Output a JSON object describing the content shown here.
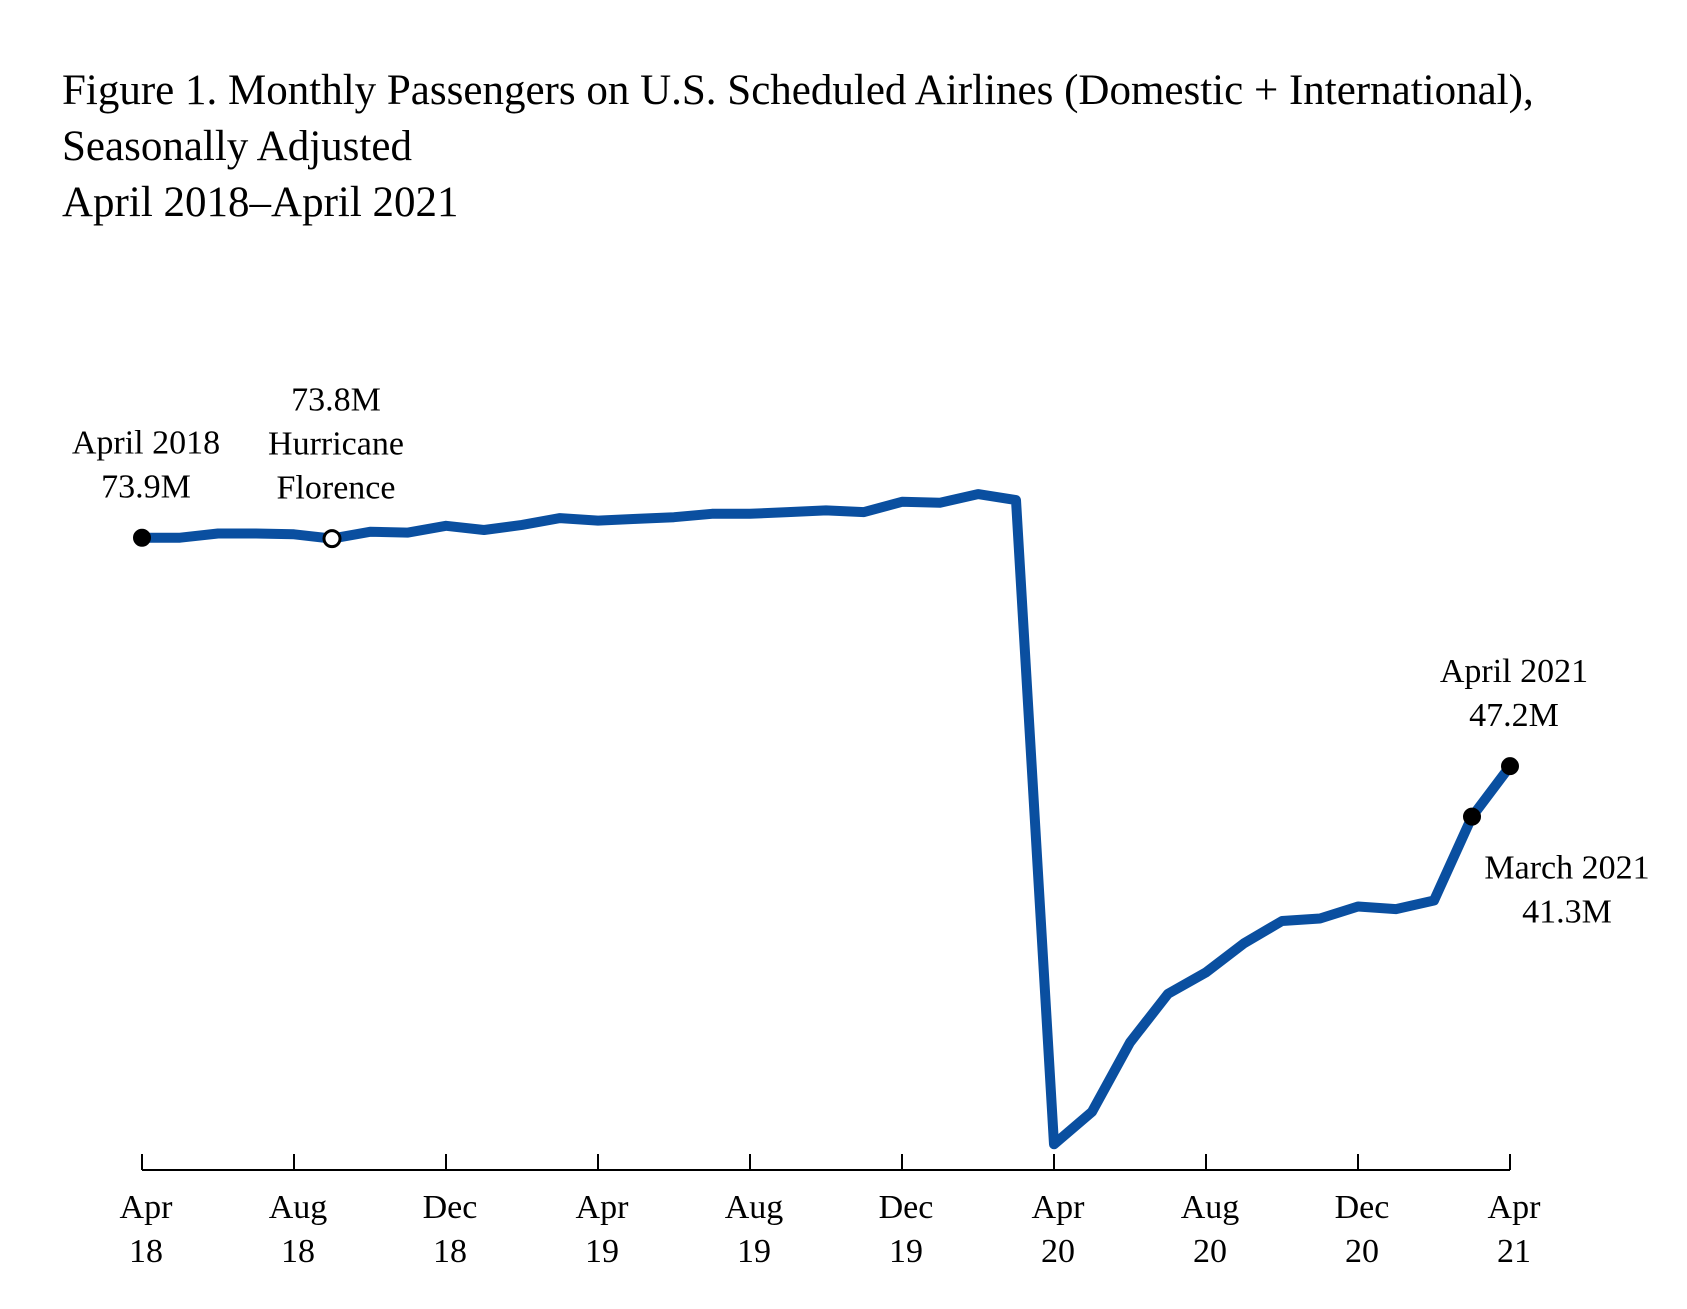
{
  "chart_data": {
    "type": "line",
    "title_lines": [
      "Figure 1. Monthly Passengers on U.S. Scheduled Airlines (Domestic + International),",
      "Seasonally Adjusted",
      "April 2018–April 2021"
    ],
    "xlabel": "",
    "ylabel": "",
    "grid": false,
    "legend": "none",
    "x_ticks": [
      {
        "month": "2018-04",
        "line1": "Apr",
        "line2": "18"
      },
      {
        "month": "2018-08",
        "line1": "Aug",
        "line2": "18"
      },
      {
        "month": "2018-12",
        "line1": "Dec",
        "line2": "18"
      },
      {
        "month": "2019-04",
        "line1": "Apr",
        "line2": "19"
      },
      {
        "month": "2019-08",
        "line1": "Aug",
        "line2": "19"
      },
      {
        "month": "2019-12",
        "line1": "Dec",
        "line2": "19"
      },
      {
        "month": "2020-04",
        "line1": "Apr",
        "line2": "20"
      },
      {
        "month": "2020-08",
        "line1": "Aug",
        "line2": "20"
      },
      {
        "month": "2020-12",
        "line1": "Dec",
        "line2": "20"
      },
      {
        "month": "2021-04",
        "line1": "Apr",
        "line2": "21"
      }
    ],
    "x": [
      "2018-04",
      "2018-05",
      "2018-06",
      "2018-07",
      "2018-08",
      "2018-09",
      "2018-10",
      "2018-11",
      "2018-12",
      "2019-01",
      "2019-02",
      "2019-03",
      "2019-04",
      "2019-05",
      "2019-06",
      "2019-07",
      "2019-08",
      "2019-09",
      "2019-10",
      "2019-11",
      "2019-12",
      "2020-01",
      "2020-02",
      "2020-03",
      "2020-04",
      "2020-05",
      "2020-06",
      "2020-07",
      "2020-08",
      "2020-09",
      "2020-10",
      "2020-11",
      "2020-12",
      "2021-01",
      "2021-02",
      "2021-03",
      "2021-04"
    ],
    "series": [
      {
        "color": "#0a4fa0",
        "values": [
          73.9,
          73.9,
          74.4,
          74.4,
          74.3,
          73.8,
          74.6,
          74.5,
          75.3,
          74.8,
          75.4,
          76.2,
          75.9,
          76.1,
          76.3,
          76.7,
          76.7,
          76.9,
          77.1,
          76.9,
          78.1,
          78.0,
          79.0,
          78.3,
          3.0,
          6.8,
          14.9,
          20.6,
          23.1,
          26.5,
          29.1,
          29.4,
          30.8,
          30.5,
          31.5,
          41.3,
          47.2
        ]
      }
    ],
    "ylim": [
      0,
      90
    ],
    "point_markers": [
      {
        "month": "2018-04",
        "value": 73.9,
        "style": "filled"
      },
      {
        "month": "2018-09",
        "value": 73.8,
        "style": "open"
      },
      {
        "month": "2021-03",
        "value": 41.3,
        "style": "filled"
      },
      {
        "month": "2021-04",
        "value": 47.2,
        "style": "filled"
      }
    ],
    "annotations": [
      {
        "month": "2018-04",
        "lines": [
          "April 2018",
          "73.9M"
        ],
        "placement": "above-point"
      },
      {
        "month": "2018-09",
        "lines": [
          "73.8M",
          "Hurricane",
          "Florence"
        ],
        "placement": "above-point"
      },
      {
        "month": "2021-04",
        "lines": [
          "April 2021",
          "47.2M"
        ],
        "placement": "above-point"
      },
      {
        "month": "2021-03",
        "lines": [
          "March 2021",
          "41.3M"
        ],
        "placement": "below-right"
      }
    ]
  }
}
